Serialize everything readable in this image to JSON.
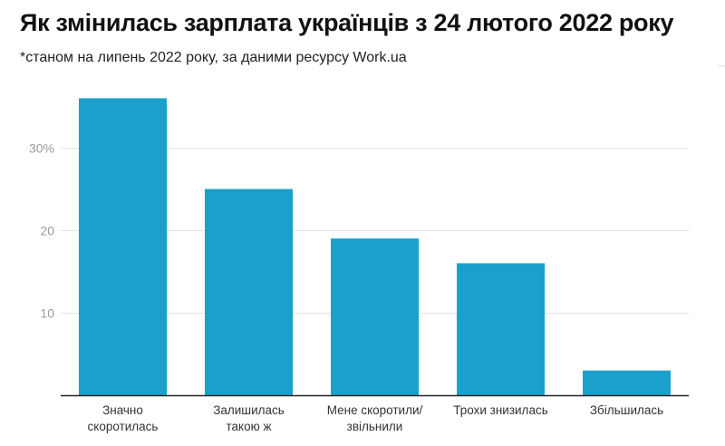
{
  "chart_data": {
    "type": "bar",
    "title": "Як змінилась зарплата українців з 24 лютого 2022 року",
    "subtitle": "*станом на липень 2022 року, за даними ресурсу Work.ua",
    "categories": [
      [
        "Значно",
        "скоротилась"
      ],
      [
        "Залишилась",
        "такою ж"
      ],
      [
        "Мене скоротили/",
        "звільнили"
      ],
      [
        "Трохи знизилась"
      ],
      [
        "Збільшилась"
      ]
    ],
    "values": [
      36,
      25,
      19,
      16,
      3
    ],
    "xlabel": "",
    "ylabel": "",
    "ylim": [
      0,
      36
    ],
    "yticks": [
      10,
      20,
      30
    ],
    "ytick_labels": [
      "10",
      "20",
      "30%"
    ],
    "grid": true,
    "legend": "none",
    "bar_color": "#1ba0cc"
  }
}
